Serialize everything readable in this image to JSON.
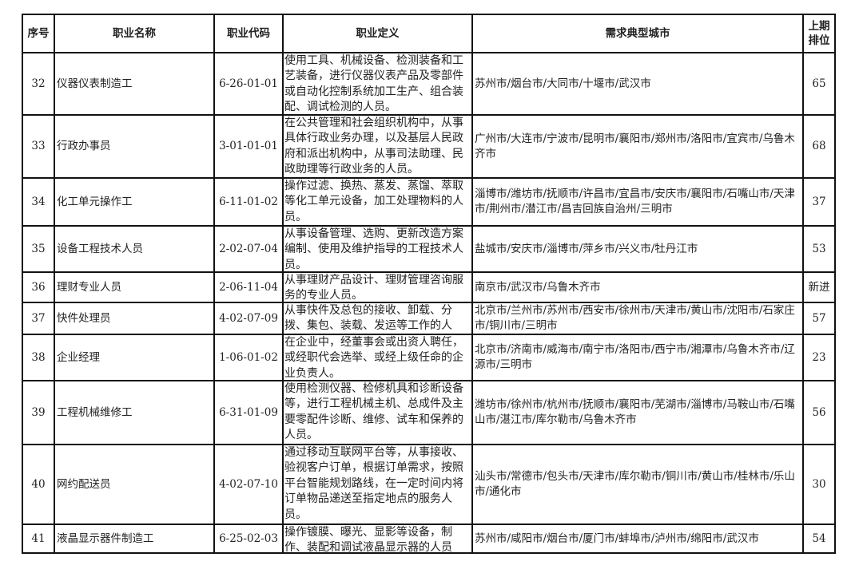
{
  "headers": [
    "序号",
    "职业名称",
    "职业代码",
    "职业定义",
    "需求典型城市",
    "上期排位"
  ],
  "rows": [
    {
      "no": "32",
      "name": "仪器仪表制造工",
      "code": "6-26-01-01",
      "definition": "使用工具、机械设备、检测装备和工艺装备，进行仪器仪表产品及零部件或自动化控制系统加工生产、组合装配、调试检测的人员。",
      "cities": "苏州市/烟台市/大同市/十堰市/武汉市",
      "prev": "65"
    },
    {
      "no": "33",
      "name": "行政办事员",
      "code": "3-01-01-01",
      "definition": "在公共管理和社会组织机构中，从事具体行政业务办理，以及基层人民政府和派出机构中，从事司法助理、民政助理等行政业务的人员。",
      "cities": "广州市/大连市/宁波市/昆明市/襄阳市/郑州市/洛阳市/宜宾市/乌鲁木齐市",
      "prev": "68"
    },
    {
      "no": "34",
      "name": "化工单元操作工",
      "code": "6-11-01-02",
      "definition": "操作过滤、换热、蒸发、蒸馏、萃取等化工单元设备，加工处理物料的人员。",
      "cities": "淄博市/潍坊市/抚顺市/许昌市/宜昌市/安庆市/襄阳市/石嘴山市/天津市/荆州市/潜江市/昌吉回族自治州/三明市",
      "prev": "37"
    },
    {
      "no": "35",
      "name": "设备工程技术人员",
      "code": "2-02-07-04",
      "definition": "从事设备管理、选购、更新改造方案编制、使用及维护指导的工程技术人员。",
      "cities": "盐城市/安庆市/淄博市/萍乡市/兴义市/牡丹江市",
      "prev": "53"
    },
    {
      "no": "36",
      "name": "理财专业人员",
      "code": "2-06-11-04",
      "definition": "从事理财产品设计、理财管理咨询服务的专业人员。",
      "cities": "南京市/武汉市/乌鲁木齐市",
      "prev": "新进"
    },
    {
      "no": "37",
      "name": "快件处理员",
      "code": "4-02-07-09",
      "definition": "从事快件及总包的接收、卸载、分拨、集包、装载、发运等工作的人",
      "cities": "北京市/兰州市/苏州市/西安市/徐州市/天津市/黄山市/沈阳市/石家庄市/铜川市/三明市",
      "prev": "57"
    },
    {
      "no": "38",
      "name": "企业经理",
      "code": "1-06-01-02",
      "definition": "在企业中，经董事会或出资人聘任，或经职代会选举、或经上级任命的企业负责人。",
      "cities": "北京市/济南市/威海市/南宁市/洛阳市/西宁市/湘潭市/乌鲁木齐市/辽源市/三明市",
      "prev": "23"
    },
    {
      "no": "39",
      "name": "工程机械维修工",
      "code": "6-31-01-09",
      "definition": "使用检测仪器、检修机具和诊断设备等，进行工程机械主机、总成件及主要零配件诊断、维修、试车和保养的人员。",
      "cities": "潍坊市/徐州市/杭州市/抚顺市/襄阳市/芜湖市/淄博市/马鞍山市/石嘴山市/湛江市/库尔勒市/乌鲁木齐市",
      "prev": "56"
    },
    {
      "no": "40",
      "name": "网约配送员",
      "code": "4-02-07-10",
      "definition": "通过移动互联网平台等，从事接收、验视客户订单，根据订单需求，按照平台智能规划路线，在一定时间内将订单物品递送至指定地点的服务人员。",
      "cities": "汕头市/常德市/包头市/天津市/库尔勒市/铜川市/黄山市/桂林市/乐山市/通化市",
      "prev": "30"
    },
    {
      "no": "41",
      "name": "液晶显示器件制造工",
      "code": "6-25-02-03",
      "definition": "操作镀膜、曝光、显影等设备，制作、装配和调试液晶显示器的人员",
      "cities": "苏州市/咸阳市/烟台市/厦门市/蚌埠市/泸州市/绵阳市/武汉市",
      "prev": "54"
    }
  ]
}
